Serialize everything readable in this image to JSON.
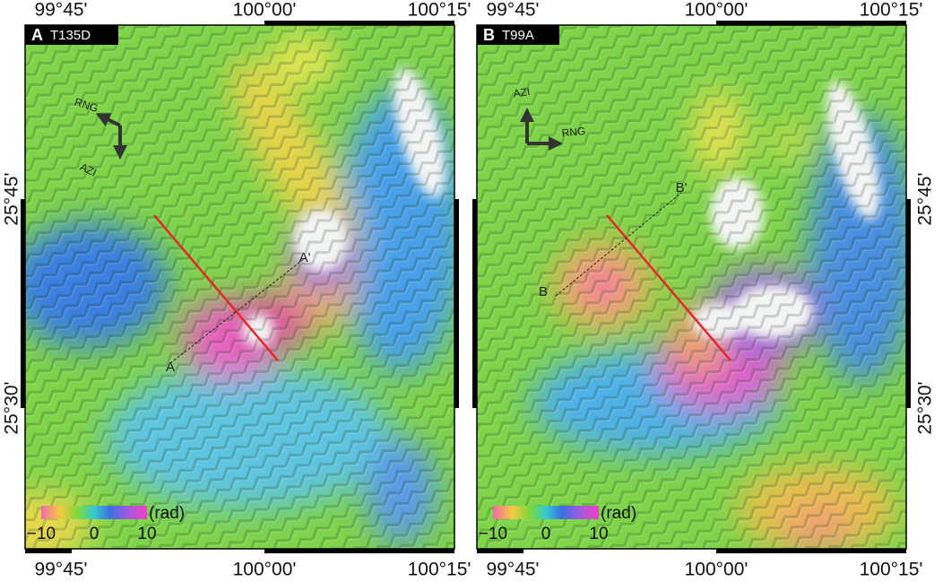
{
  "panels": [
    {
      "label": "A",
      "track": "T135D",
      "profile_start": "A",
      "profile_end": "A'",
      "range_label": "RNG",
      "azimuth_label": "AZI",
      "lon_labels_top": [
        "99°45'",
        "100°00'",
        "100°15'"
      ],
      "lon_labels_bottom": [
        "99°45'",
        "100°00'",
        "100°15'"
      ],
      "lat_labels": [
        "25°45'",
        "25°30'"
      ],
      "colorbar": {
        "unit": "(rad)",
        "ticks": [
          "−10",
          "0",
          "10"
        ]
      }
    },
    {
      "label": "B",
      "track": "T99A",
      "profile_start": "B",
      "profile_end": "B'",
      "range_label": "RNG",
      "azimuth_label": "AZI",
      "lon_labels_top": [
        "99°45'",
        "100°00'",
        "100°15'"
      ],
      "lon_labels_bottom": [
        "99°45'",
        "100°00'",
        "100°15'"
      ],
      "lat_labels": [
        "25°45'",
        "25°30'"
      ],
      "colorbar": {
        "unit": "(rad)",
        "ticks": [
          "−10",
          "0",
          "10"
        ]
      }
    }
  ]
}
